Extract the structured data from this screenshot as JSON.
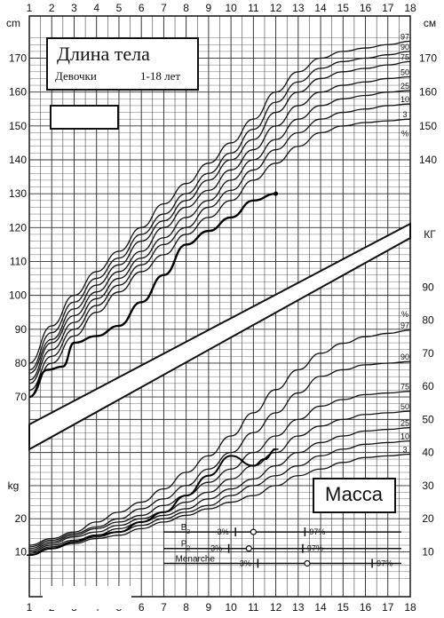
{
  "chart_data": {
    "type": "line",
    "title": "Длина тела",
    "subtitle_group": "Девочки",
    "subtitle_age": "1-18 лет",
    "mass_label": "Масса",
    "x_ticks": [
      1,
      2,
      3,
      4,
      5,
      6,
      7,
      8,
      9,
      10,
      11,
      12,
      13,
      14,
      15,
      16,
      17,
      18
    ],
    "x_range": [
      1,
      18
    ],
    "height": {
      "unit_left": "cm",
      "unit_right": "см",
      "ticks": [
        70,
        80,
        90,
        100,
        110,
        120,
        130,
        140,
        150,
        160,
        170
      ],
      "range": [
        64,
        178
      ],
      "percent_mark": "%",
      "percentiles": [
        {
          "name": "97",
          "x": [
            1,
            2,
            3,
            4,
            5,
            6,
            7,
            8,
            9,
            10,
            11,
            12,
            13,
            14,
            15,
            16,
            17,
            18
          ],
          "y": [
            80,
            91,
            100,
            107,
            113,
            120,
            127,
            133,
            139,
            145,
            152,
            160,
            166,
            170,
            172,
            173,
            174,
            175
          ]
        },
        {
          "name": "90",
          "x": [
            1,
            2,
            3,
            4,
            5,
            6,
            7,
            8,
            9,
            10,
            11,
            12,
            13,
            14,
            15,
            16,
            17,
            18
          ],
          "y": [
            78,
            89,
            98,
            105,
            111,
            118,
            124,
            130,
            136,
            142,
            149,
            157,
            163,
            167,
            169,
            170,
            171,
            172
          ]
        },
        {
          "name": "75",
          "x": [
            1,
            2,
            3,
            4,
            5,
            6,
            7,
            8,
            9,
            10,
            11,
            12,
            13,
            14,
            15,
            16,
            17,
            18
          ],
          "y": [
            77,
            87,
            96,
            103,
            109,
            116,
            122,
            128,
            134,
            140,
            146,
            154,
            160,
            164,
            166,
            167,
            168,
            169
          ]
        },
        {
          "name": "50",
          "x": [
            1,
            2,
            3,
            4,
            5,
            6,
            7,
            8,
            9,
            10,
            11,
            12,
            13,
            14,
            15,
            16,
            17,
            18
          ],
          "y": [
            75,
            86,
            94,
            101,
            107,
            113,
            120,
            126,
            131,
            137,
            143,
            150,
            156,
            160,
            162,
            163,
            164,
            164.5
          ]
        },
        {
          "name": "25",
          "x": [
            1,
            2,
            3,
            4,
            5,
            6,
            7,
            8,
            9,
            10,
            11,
            12,
            13,
            14,
            15,
            16,
            17,
            18
          ],
          "y": [
            74,
            84,
            92,
            99,
            105,
            111,
            117,
            123,
            128,
            134,
            140,
            146,
            152,
            156,
            158,
            159,
            160,
            160.5
          ]
        },
        {
          "name": "10",
          "x": [
            1,
            2,
            3,
            4,
            5,
            6,
            7,
            8,
            9,
            10,
            11,
            12,
            13,
            14,
            15,
            16,
            17,
            18
          ],
          "y": [
            72,
            82,
            90,
            97,
            103,
            109,
            115,
            120,
            126,
            131,
            137,
            143,
            148,
            152,
            154,
            155,
            156,
            156.5
          ]
        },
        {
          "name": "3",
          "x": [
            1,
            2,
            3,
            4,
            5,
            6,
            7,
            8,
            9,
            10,
            11,
            12,
            13,
            14,
            15,
            16,
            17,
            18
          ],
          "y": [
            70,
            80,
            88,
            95,
            101,
            107,
            112,
            118,
            123,
            128,
            134,
            139,
            144,
            148,
            150,
            151,
            151.5,
            152
          ]
        }
      ],
      "patient": {
        "x": [
          1,
          1.8,
          2.5,
          3,
          4,
          5,
          6,
          7,
          8,
          9,
          10,
          11,
          12
        ],
        "y": [
          70,
          78,
          79,
          86,
          88,
          91,
          98,
          106,
          115,
          119,
          123,
          128,
          130
        ]
      }
    },
    "weight": {
      "unit_left": "kg",
      "unit_right": "КГ",
      "ticks": [
        10,
        20,
        30,
        40,
        50,
        60,
        70,
        80,
        90
      ],
      "range": [
        1,
        89
      ],
      "percent_mark": "%",
      "percentiles": [
        {
          "name": "97",
          "x": [
            1,
            2,
            3,
            4,
            5,
            6,
            7,
            8,
            9,
            10,
            11,
            12,
            13,
            14,
            15,
            16,
            17,
            18
          ],
          "y": [
            12,
            14,
            16,
            19,
            22,
            25,
            29,
            34,
            39,
            45,
            52,
            59,
            65,
            70,
            73,
            75,
            76,
            77
          ]
        },
        {
          "name": "90",
          "x": [
            1,
            2,
            3,
            4,
            5,
            6,
            7,
            8,
            9,
            10,
            11,
            12,
            13,
            14,
            15,
            16,
            17,
            18
          ],
          "y": [
            11.5,
            13.5,
            15.5,
            17.5,
            20,
            23,
            26,
            30,
            35,
            40,
            46,
            52,
            58,
            63,
            65,
            66.5,
            67,
            67.5
          ]
        },
        {
          "name": "75",
          "x": [
            1,
            2,
            3,
            4,
            5,
            6,
            7,
            8,
            9,
            10,
            11,
            12,
            13,
            14,
            15,
            16,
            17,
            18
          ],
          "y": [
            11,
            13,
            15,
            17,
            19,
            21,
            24,
            27,
            31,
            35,
            40,
            45,
            50,
            54,
            56,
            57.5,
            58,
            58.5
          ]
        },
        {
          "name": "50",
          "x": [
            1,
            2,
            3,
            4,
            5,
            6,
            7,
            8,
            9,
            10,
            11,
            12,
            13,
            14,
            15,
            16,
            17,
            18
          ],
          "y": [
            10.5,
            12.5,
            14.5,
            16,
            18,
            20,
            22,
            25,
            28,
            32,
            36,
            40,
            45,
            48,
            50,
            51.5,
            52,
            52.5
          ]
        },
        {
          "name": "25",
          "x": [
            1,
            2,
            3,
            4,
            5,
            6,
            7,
            8,
            9,
            10,
            11,
            12,
            13,
            14,
            15,
            16,
            17,
            18
          ],
          "y": [
            10,
            12,
            13.5,
            15,
            17,
            19,
            21,
            23,
            26,
            29,
            32,
            36,
            40,
            43,
            45,
            46.5,
            47,
            47.5
          ]
        },
        {
          "name": "10",
          "x": [
            1,
            2,
            3,
            4,
            5,
            6,
            7,
            8,
            9,
            10,
            11,
            12,
            13,
            14,
            15,
            16,
            17,
            18
          ],
          "y": [
            9.5,
            11.5,
            13,
            14.5,
            16,
            18,
            20,
            22,
            24,
            27,
            30,
            33,
            36,
            39,
            41,
            42.5,
            43,
            43.5
          ]
        },
        {
          "name": "3",
          "x": [
            1,
            2,
            3,
            4,
            5,
            6,
            7,
            8,
            9,
            10,
            11,
            12,
            13,
            14,
            15,
            16,
            17,
            18
          ],
          "y": [
            9,
            11,
            12.5,
            14,
            15,
            17,
            19,
            21,
            23,
            25,
            27,
            30,
            33,
            35,
            37,
            38.5,
            39,
            39.5
          ]
        }
      ],
      "patient": {
        "x": [
          1,
          2,
          3,
          4,
          5,
          6,
          7,
          8,
          9,
          10,
          11,
          11.5,
          12
        ],
        "y": [
          9,
          11,
          13,
          15,
          16,
          19,
          22,
          27,
          33,
          39,
          36,
          38,
          41
        ]
      }
    },
    "puberty": [
      {
        "label": "B",
        "sub": "2",
        "p3_label": "3%",
        "p97_label": "97%",
        "p3_age": 10.2,
        "p50_age": 11.0,
        "p97_age": 13.3,
        "y": 16
      },
      {
        "label": "P",
        "sub": "2",
        "p3_label": "3%",
        "p97_label": "97%",
        "p3_age": 9.9,
        "p50_age": 10.8,
        "p97_age": 13.2,
        "y": 11
      },
      {
        "label": "Menarche",
        "sub": "",
        "p3_label": "3%",
        "p97_label": "97%",
        "p3_age": 11.2,
        "p50_age": 13.4,
        "p97_age": 16.3,
        "y": 6.5
      }
    ]
  }
}
